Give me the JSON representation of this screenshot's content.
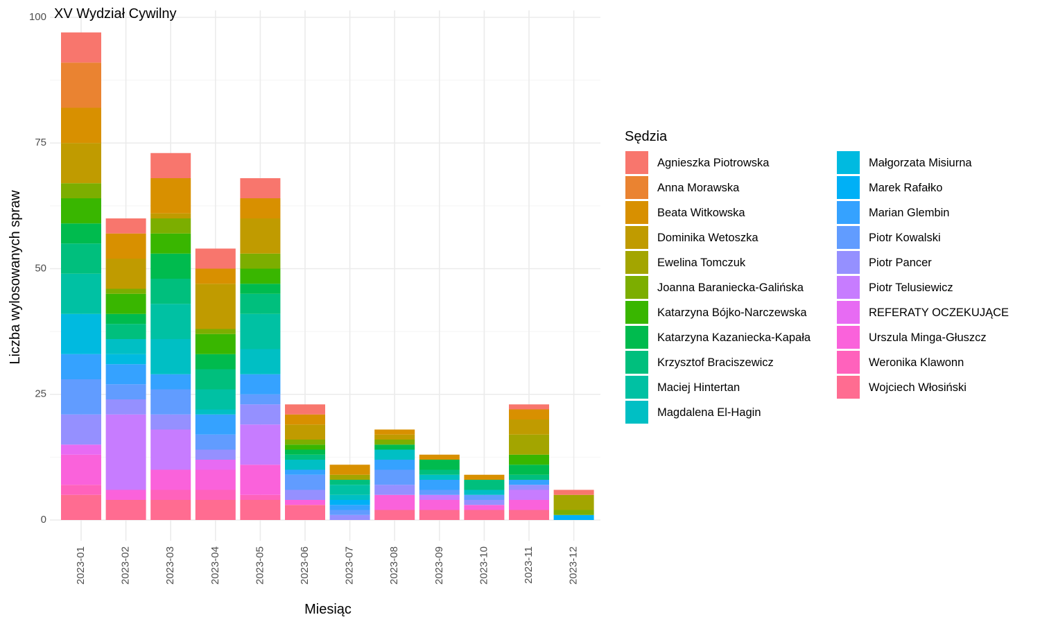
{
  "chart_data": {
    "type": "bar",
    "stacked": true,
    "title": "XV Wydział Cywilny",
    "xlabel": "Miesiąc",
    "ylabel": "Liczba wylosowanych spraw",
    "ylim": [
      0,
      100
    ],
    "yticks": [
      0,
      25,
      50,
      75,
      100
    ],
    "grid": true,
    "legend_title": "Sędzia",
    "legend_position": "right",
    "categories": [
      "2023-01",
      "2023-02",
      "2023-03",
      "2023-04",
      "2023-05",
      "2023-06",
      "2023-07",
      "2023-08",
      "2023-09",
      "2023-10",
      "2023-11",
      "2023-12"
    ],
    "series": [
      {
        "name": "Agnieszka Piotrowska",
        "color": "#F8766D",
        "values": [
          6,
          3,
          5,
          4,
          4,
          2,
          0,
          0,
          0,
          0,
          1,
          1
        ]
      },
      {
        "name": "Anna Morawska",
        "color": "#EA8331",
        "values": [
          9,
          0,
          0,
          0,
          0,
          0,
          0,
          0,
          0,
          0,
          0,
          0
        ]
      },
      {
        "name": "Beata Witkowska",
        "color": "#D89000",
        "values": [
          7,
          5,
          7,
          3,
          4,
          2,
          2,
          1,
          1,
          1,
          2,
          0
        ]
      },
      {
        "name": "Dominika Wetoszka",
        "color": "#C09B00",
        "values": [
          8,
          6,
          1,
          9,
          7,
          3,
          0,
          1,
          0,
          0,
          3,
          0
        ]
      },
      {
        "name": "Ewelina Tomczuk",
        "color": "#A3A500",
        "values": [
          0,
          0,
          0,
          0,
          0,
          0,
          1,
          0,
          0,
          0,
          4,
          3
        ]
      },
      {
        "name": "Joanna Baraniecka-Galińska",
        "color": "#7CAE00",
        "values": [
          3,
          1,
          3,
          1,
          3,
          1,
          0,
          1,
          0,
          0,
          0,
          1
        ]
      },
      {
        "name": "Katarzyna Bójko-Narczewska",
        "color": "#39B600",
        "values": [
          5,
          4,
          4,
          4,
          3,
          1,
          0,
          0,
          0,
          0,
          2,
          0
        ]
      },
      {
        "name": "Katarzyna Kazaniecka-Kapała",
        "color": "#00BB4E",
        "values": [
          4,
          2,
          5,
          3,
          2,
          1,
          0,
          1,
          2,
          0,
          2,
          0
        ]
      },
      {
        "name": "Krzysztof Braciszewicz",
        "color": "#00BF7D",
        "values": [
          6,
          3,
          5,
          4,
          4,
          1,
          1,
          0,
          1,
          2,
          1,
          0
        ]
      },
      {
        "name": "Maciej Hintertan",
        "color": "#00C1A3",
        "values": [
          8,
          0,
          7,
          4,
          7,
          0,
          2,
          0,
          0,
          0,
          0,
          0
        ]
      },
      {
        "name": "Magdalena El-Hagin",
        "color": "#00BFC4",
        "values": [
          0,
          3,
          7,
          1,
          5,
          2,
          1,
          2,
          1,
          1,
          0,
          0
        ]
      },
      {
        "name": "Małgorzata Misiurna",
        "color": "#00BAE0",
        "values": [
          8,
          2,
          0,
          0,
          0,
          0,
          0,
          0,
          0,
          0,
          0,
          0
        ]
      },
      {
        "name": "Marek Rafałko",
        "color": "#00B0F6",
        "values": [
          0,
          0,
          0,
          0,
          0,
          0,
          1,
          0,
          0,
          0,
          0,
          1
        ]
      },
      {
        "name": "Marian Glembin",
        "color": "#35A2FF",
        "values": [
          5,
          4,
          3,
          4,
          4,
          1,
          1,
          2,
          2,
          0,
          1,
          0
        ]
      },
      {
        "name": "Piotr Kowalski",
        "color": "#619CFF",
        "values": [
          7,
          3,
          5,
          3,
          2,
          3,
          1,
          3,
          1,
          1,
          0,
          0
        ]
      },
      {
        "name": "Piotr Pancer",
        "color": "#9590FF",
        "values": [
          6,
          3,
          3,
          2,
          4,
          2,
          1,
          2,
          0,
          1,
          1,
          0
        ]
      },
      {
        "name": "Piotr Telusiewicz",
        "color": "#C77CFF",
        "values": [
          0,
          15,
          8,
          0,
          8,
          0,
          0,
          0,
          1,
          0,
          2,
          0
        ]
      },
      {
        "name": "REFERATY OCZEKUJĄCE",
        "color": "#E76BF3",
        "values": [
          2,
          0,
          0,
          2,
          0,
          0,
          0,
          0,
          0,
          0,
          0,
          0
        ]
      },
      {
        "name": "Urszula Minga-Głuszcz",
        "color": "#FA62DB",
        "values": [
          6,
          2,
          4,
          4,
          6,
          1,
          0,
          3,
          2,
          1,
          2,
          0
        ]
      },
      {
        "name": "Weronika Klawonn",
        "color": "#FF62BC",
        "values": [
          2,
          0,
          2,
          2,
          1,
          0,
          0,
          0,
          0,
          0,
          0,
          0
        ]
      },
      {
        "name": "Wojciech Włosiński",
        "color": "#FF6C91",
        "values": [
          5,
          4,
          4,
          4,
          4,
          3,
          0,
          2,
          2,
          2,
          2,
          0
        ]
      }
    ]
  }
}
